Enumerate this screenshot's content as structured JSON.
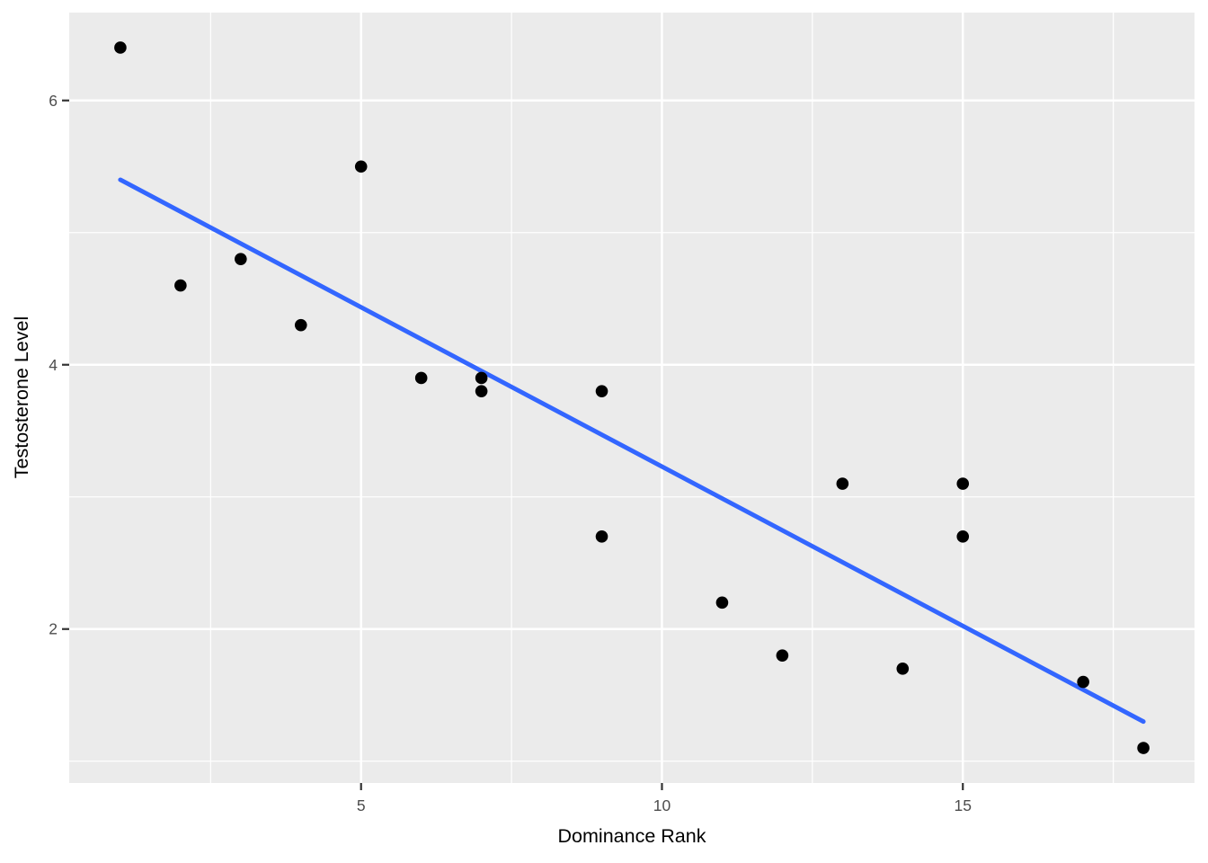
{
  "figure": {
    "background_color": "#FFFFFF",
    "panel_color": "#EBEBEB",
    "grid_color": "#FFFFFF",
    "point_color": "#000000",
    "trend_color": "#3366FF",
    "tick_mark_color": "#333333",
    "tick_label_color": "#4D4D4D",
    "axis_title_color": "#000000"
  },
  "chart_data": {
    "type": "scatter",
    "title": "",
    "xlabel": "Dominance Rank",
    "ylabel": "Testosterone Level",
    "xlim": [
      0.15,
      18.85
    ],
    "ylim": [
      0.835,
      6.665
    ],
    "x_major_ticks": [
      5,
      10,
      15
    ],
    "y_major_ticks": [
      2,
      4,
      6
    ],
    "x_minor_gridlines": [
      2.5,
      7.5,
      12.5,
      17.5
    ],
    "y_minor_gridlines": [
      1,
      3,
      5
    ],
    "grid": "white major and minor gridlines on gray panel",
    "legend_position": "none",
    "points": [
      {
        "x": 1,
        "y": 6.4
      },
      {
        "x": 2,
        "y": 4.6
      },
      {
        "x": 3,
        "y": 4.8
      },
      {
        "x": 4,
        "y": 4.3
      },
      {
        "x": 5,
        "y": 5.5
      },
      {
        "x": 6,
        "y": 3.9
      },
      {
        "x": 7,
        "y": 3.9
      },
      {
        "x": 7,
        "y": 3.8
      },
      {
        "x": 9,
        "y": 3.8
      },
      {
        "x": 9,
        "y": 2.7
      },
      {
        "x": 11,
        "y": 2.2
      },
      {
        "x": 12,
        "y": 1.8
      },
      {
        "x": 13,
        "y": 3.1
      },
      {
        "x": 14,
        "y": 1.7
      },
      {
        "x": 15,
        "y": 3.1
      },
      {
        "x": 15,
        "y": 2.7
      },
      {
        "x": 17,
        "y": 1.6
      },
      {
        "x": 18,
        "y": 1.1
      }
    ],
    "trend_line": {
      "fit": "linear",
      "x_start": 1,
      "y_start": 5.4,
      "x_end": 18,
      "y_end": 1.3
    }
  }
}
